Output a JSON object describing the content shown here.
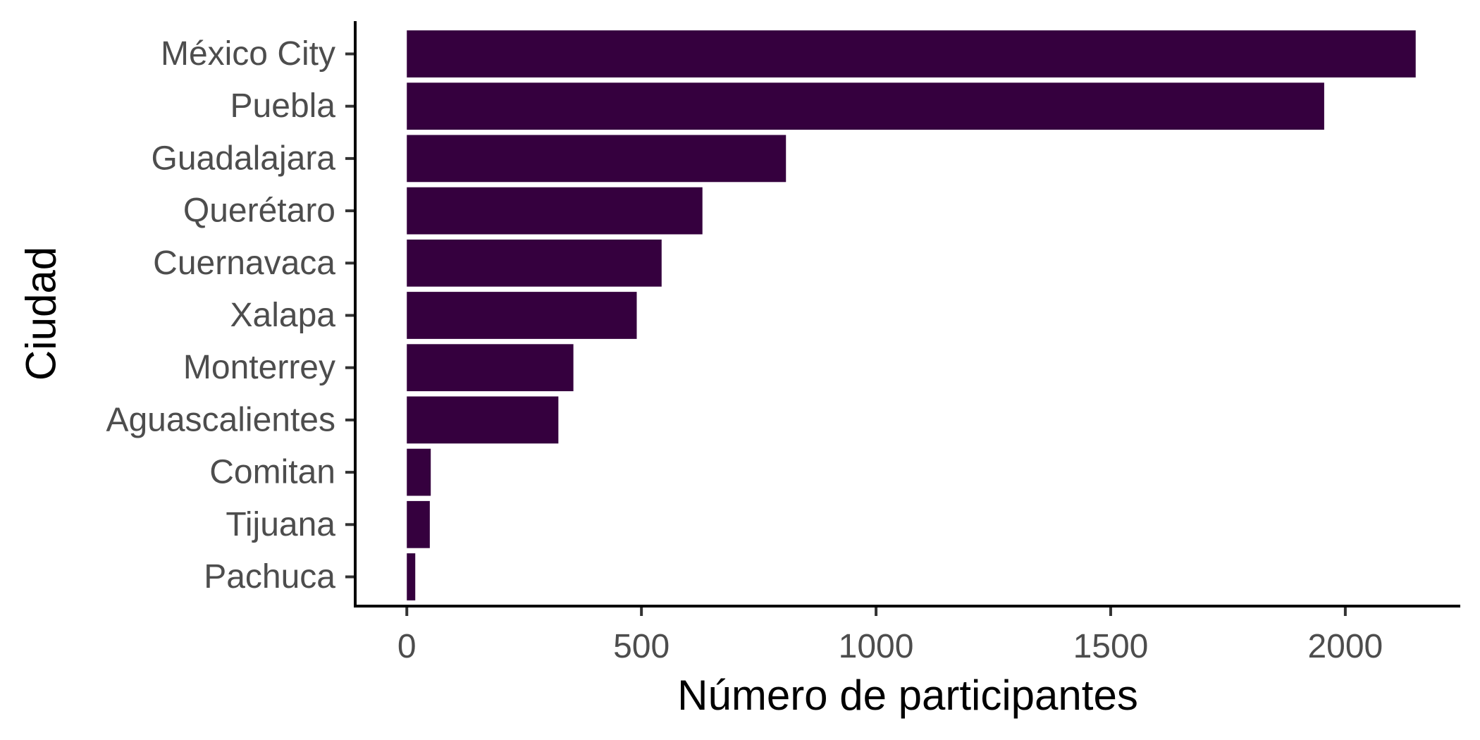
{
  "chart_data": {
    "type": "bar",
    "orientation": "horizontal",
    "xlabel": "Número de participantes",
    "ylabel": "Ciudad",
    "xlim": [
      -110,
      2245
    ],
    "x_ticks": [
      0,
      500,
      1000,
      1500,
      2000
    ],
    "x_tick_labels": [
      "0",
      "500",
      "1000",
      "1500",
      "2000"
    ],
    "categories": [
      "México City",
      "Puebla",
      "Guadalajara",
      "Querétaro",
      "Cuernavaca",
      "Xalapa",
      "Monterrey",
      "Aguascalientes",
      "Comitan",
      "Tijuana",
      "Pachuca"
    ],
    "values": [
      2150,
      1955,
      808,
      630,
      543,
      490,
      355,
      323,
      51,
      49,
      18
    ],
    "bar_color": "#35003e",
    "grid": false,
    "legend": "none"
  }
}
